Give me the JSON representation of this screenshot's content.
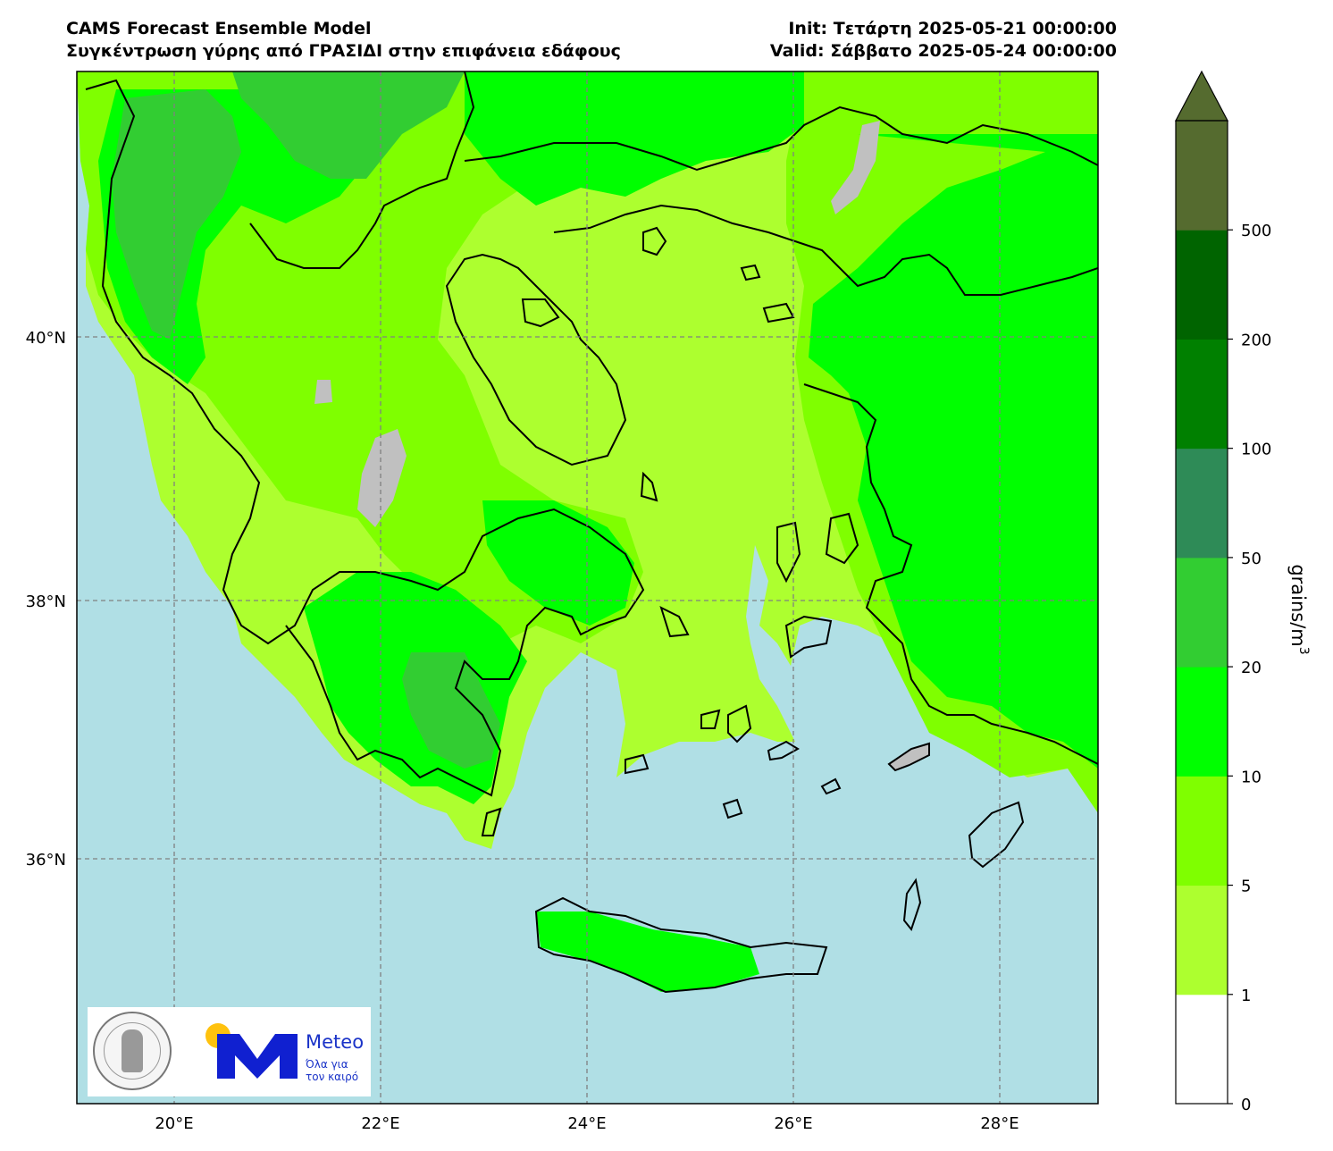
{
  "header": {
    "title_line1": "CAMS Forecast Ensemble Model",
    "title_line2": "Συγκέντρωση γύρης από ΓΡΑΣΙΔΙ στην επιφάνεια εδάφους",
    "init": "Init: Τετάρτη 2025-05-21 00:00:00",
    "valid": "Valid: Σάββατο 2025-05-24 00:00:00"
  },
  "map": {
    "lat_ticks": [
      "40°N",
      "38°N",
      "36°N"
    ],
    "lon_ticks": [
      "20°E",
      "22°E",
      "24°E",
      "26°E",
      "28°E"
    ],
    "sea_color": "#b0dfe5",
    "no_data_color": "#c0c0c0"
  },
  "colorbar": {
    "label": "grains/m",
    "label_exponent": "3",
    "levels": [
      "0",
      "1",
      "5",
      "10",
      "20",
      "50",
      "100",
      "200",
      "500"
    ],
    "colors": [
      "#ffffff",
      "#adff2f",
      "#7fff00",
      "#00ff00",
      "#32cd32",
      "#2e8b57",
      "#008000",
      "#006400",
      "#556b2f"
    ]
  },
  "logos": {
    "meteo_name": "Meteo",
    "meteo_tagline_1": "Όλα για",
    "meteo_tagline_2": "τον καιρό",
    "seal_icon": "national-observatory-athens-seal"
  }
}
